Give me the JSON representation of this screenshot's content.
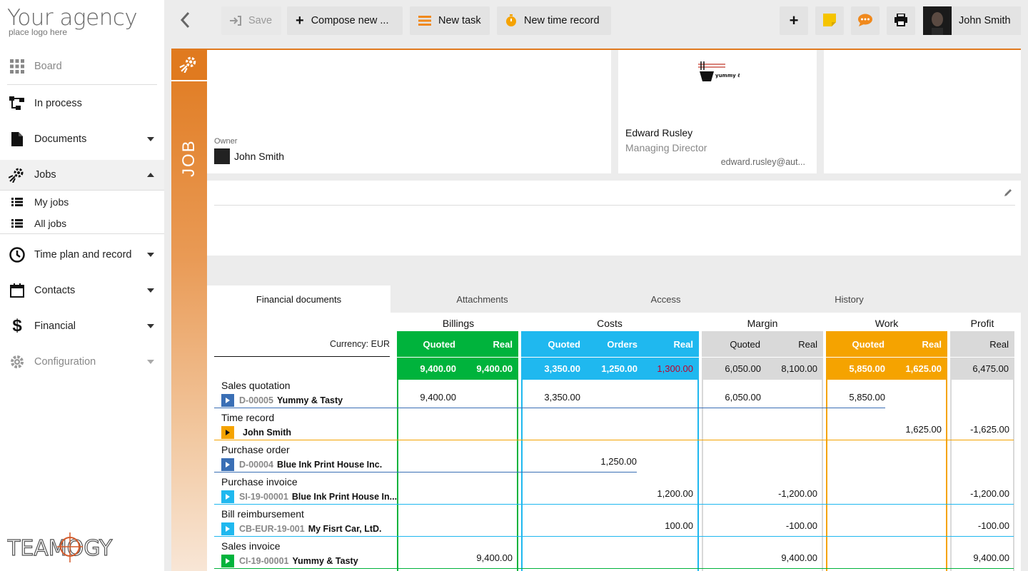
{
  "brand": {
    "logo_big": "Your agency",
    "logo_small": "place logo here",
    "footer_logo": "TEAMOGY"
  },
  "sidebar": {
    "board": "Board",
    "in_process": "In process",
    "documents": "Documents",
    "jobs": "Jobs",
    "my_jobs": "My jobs",
    "all_jobs": "All jobs",
    "time_plan": "Time plan and record",
    "contacts": "Contacts",
    "financial": "Financial",
    "configuration": "Configuration"
  },
  "toolbar": {
    "save": "Save",
    "compose": "Compose new ...",
    "new_task": "New task",
    "new_time": "New time record",
    "user": "John Smith"
  },
  "job": {
    "label": "JOB",
    "owner_label": "Owner",
    "owner_name": "John Smith",
    "contact_logo_text": "yummy & tasty",
    "contact_name": "Edward Rusley",
    "contact_role": "Managing Director",
    "contact_email": "edward.rusley@aut..."
  },
  "tabs": [
    "Financial documents",
    "Attachments",
    "Access",
    "History"
  ],
  "fin": {
    "currency": "Currency: EUR",
    "groups": {
      "billings": "Billings",
      "costs": "Costs",
      "margin": "Margin",
      "work": "Work",
      "profit": "Profit"
    },
    "sub": {
      "quoted": "Quoted",
      "real": "Real",
      "orders": "Orders"
    },
    "totals": {
      "bill_quoted": "9,400.00",
      "bill_real": "9,400.00",
      "cost_quoted": "3,350.00",
      "cost_orders": "1,250.00",
      "cost_real": "1,300.00",
      "margin_quoted": "6,050.00",
      "margin_real": "8,100.00",
      "work_quoted": "5,850.00",
      "work_real": "1,625.00",
      "profit_real": "6,475.00"
    },
    "rows": [
      {
        "label": "Sales quotation",
        "code": "D-00005",
        "party": "Yummy & Tasty",
        "bill_quoted": "9,400.00",
        "cost_quoted": "3,350.00",
        "margin_quoted": "6,050.00",
        "work_quoted": "5,850.00"
      },
      {
        "label": "Time record",
        "code": "",
        "party": "John Smith",
        "work_real": "1,625.00",
        "profit_real": "-1,625.00"
      },
      {
        "label": "Purchase order",
        "code": "D-00004",
        "party": "Blue Ink Print House Inc.",
        "cost_orders": "1,250.00"
      },
      {
        "label": "Purchase invoice",
        "code": "SI-19-00001",
        "party": "Blue Ink Print House In...",
        "cost_real": "1,200.00",
        "margin_real": "-1,200.00",
        "profit_real": "-1,200.00"
      },
      {
        "label": "Bill reimbursement",
        "code": "CB-EUR-19-001",
        "party": "My Fisrt Car, LtD.",
        "cost_real": "100.00",
        "margin_real": "-100.00",
        "profit_real": "-100.00"
      },
      {
        "label": "Sales invoice",
        "code": "CI-19-00001",
        "party": "Yummy & Tasty",
        "bill_real": "9,400.00",
        "margin_real": "9,400.00",
        "profit_real": "9,400.00"
      }
    ]
  },
  "colors": {
    "accent": "#e07a1f",
    "billings": "#00b33c",
    "costs": "#1fb8ef",
    "margin": "#d9d9d9",
    "work": "#f5a300",
    "negative": "#c0002a"
  }
}
